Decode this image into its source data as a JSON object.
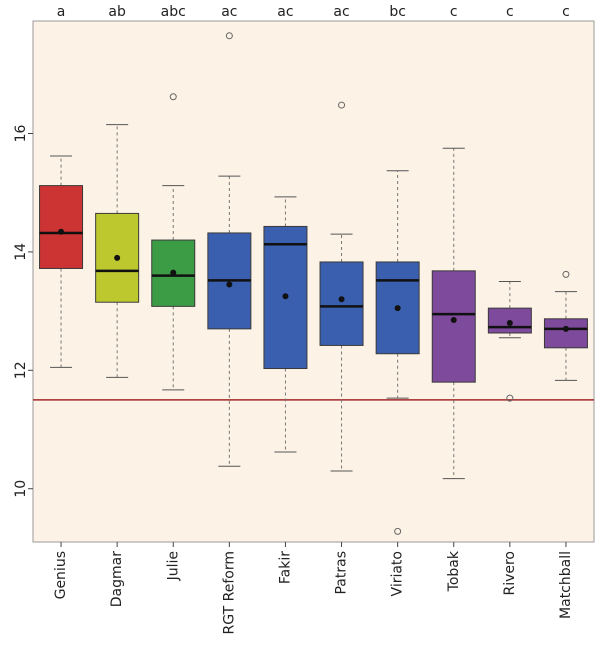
{
  "chart_data": {
    "type": "boxplot",
    "title": "",
    "xlabel": "",
    "ylabel": "",
    "ylim": [
      9.1,
      17.9
    ],
    "yticks": [
      10,
      12,
      14,
      16
    ],
    "reference_line": 11.5,
    "categories": [
      "Genius",
      "Dagmar",
      "Julie",
      "RGT Reform",
      "Fakir",
      "Patras",
      "Viriato",
      "Tobak",
      "Rivero",
      "Matchball"
    ],
    "group_letters": [
      "a",
      "ab",
      "abc",
      "ac",
      "ac",
      "ac",
      "bc",
      "c",
      "c",
      "c"
    ],
    "colors": [
      "#cc3333",
      "#bcc82e",
      "#3c9c46",
      "#3a5fae",
      "#3a5fae",
      "#3a5fae",
      "#3a5fae",
      "#7e4a9c",
      "#7e4a9c",
      "#7e4a9c"
    ],
    "boxes": [
      {
        "min": 12.05,
        "q1": 13.72,
        "median": 14.32,
        "q3": 15.12,
        "max": 15.62,
        "mean": 14.34,
        "outliers": []
      },
      {
        "min": 11.88,
        "q1": 13.15,
        "median": 13.68,
        "q3": 14.65,
        "max": 16.15,
        "mean": 13.9,
        "outliers": []
      },
      {
        "min": 11.67,
        "q1": 13.08,
        "median": 13.6,
        "q3": 14.2,
        "max": 15.12,
        "mean": 13.65,
        "outliers": [
          16.62
        ]
      },
      {
        "min": 10.38,
        "q1": 12.7,
        "median": 13.52,
        "q3": 14.32,
        "max": 15.28,
        "mean": 13.45,
        "outliers": [
          17.65
        ]
      },
      {
        "min": 10.62,
        "q1": 12.03,
        "median": 14.13,
        "q3": 14.43,
        "max": 14.93,
        "mean": 13.25,
        "outliers": []
      },
      {
        "min": 10.3,
        "q1": 12.42,
        "median": 13.08,
        "q3": 13.83,
        "max": 14.3,
        "mean": 13.2,
        "outliers": [
          16.48
        ]
      },
      {
        "min": 11.53,
        "q1": 12.28,
        "median": 13.52,
        "q3": 13.83,
        "max": 15.37,
        "mean": 13.05,
        "outliers": [
          9.28
        ]
      },
      {
        "min": 10.17,
        "q1": 11.8,
        "median": 12.95,
        "q3": 13.68,
        "max": 15.75,
        "mean": 12.85,
        "outliers": []
      },
      {
        "min": 12.55,
        "q1": 12.63,
        "median": 12.73,
        "q3": 13.05,
        "max": 13.5,
        "mean": 12.8,
        "outliers": [
          11.53
        ]
      },
      {
        "min": 11.83,
        "q1": 12.38,
        "median": 12.7,
        "q3": 12.87,
        "max": 13.33,
        "mean": 12.7,
        "outliers": [
          13.62
        ]
      }
    ]
  }
}
